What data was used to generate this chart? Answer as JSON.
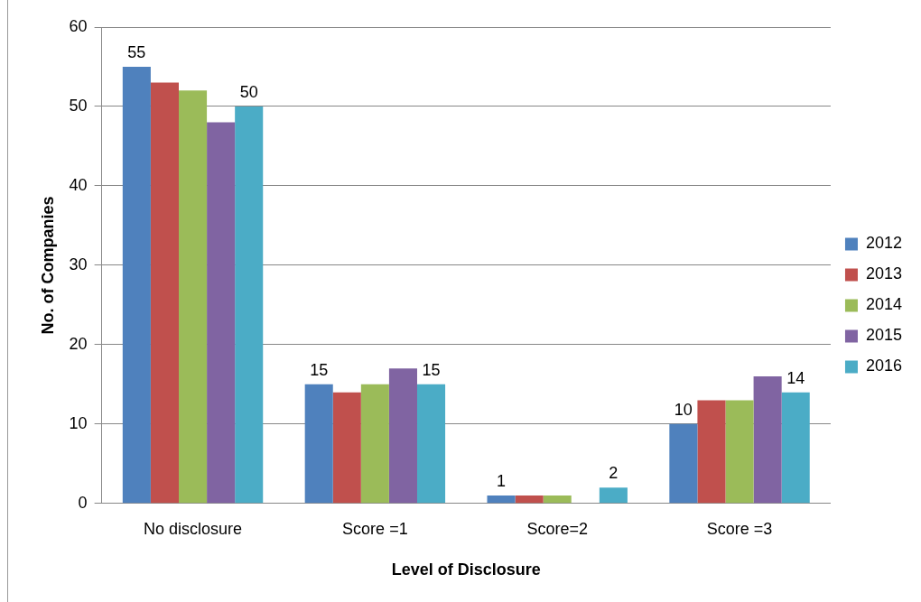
{
  "chart_data": {
    "type": "bar",
    "xlabel": "Level of Disclosure",
    "ylabel": "No. of Companies",
    "categories": [
      "No disclosure",
      "Score =1",
      "Score=2",
      "Score =3"
    ],
    "series": [
      {
        "name": "2012",
        "color": "#4f81bd",
        "values": [
          55,
          15,
          1,
          10
        ],
        "value_labels": [
          "55",
          "15",
          "1",
          "10"
        ]
      },
      {
        "name": "2013",
        "color": "#c0504d",
        "values": [
          53,
          14,
          1,
          13
        ]
      },
      {
        "name": "2014",
        "color": "#9bbb59",
        "values": [
          52,
          15,
          1,
          13
        ]
      },
      {
        "name": "2015",
        "color": "#8064a2",
        "values": [
          48,
          17,
          0,
          16
        ]
      },
      {
        "name": "2016",
        "color": "#4bacc6",
        "values": [
          50,
          15,
          2,
          14
        ],
        "value_labels": [
          "50",
          "15",
          "2",
          "14"
        ]
      }
    ],
    "ylim": [
      0,
      60
    ],
    "yticks": [
      0,
      10,
      20,
      30,
      40,
      50,
      60
    ],
    "grid": "y",
    "legend": "right"
  }
}
